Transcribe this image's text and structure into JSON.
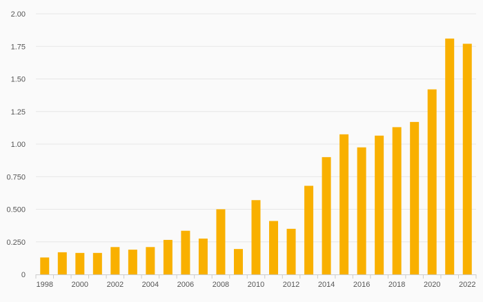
{
  "chart_data": {
    "type": "bar",
    "title": "",
    "xlabel": "",
    "ylabel": "",
    "categories": [
      "1998",
      "1999",
      "2000",
      "2001",
      "2002",
      "2003",
      "2004",
      "2005",
      "2006",
      "2007",
      "2008",
      "2009",
      "2010",
      "2011",
      "2012",
      "2013",
      "2014",
      "2015",
      "2016",
      "2017",
      "2018",
      "2019",
      "2020",
      "2021",
      "2022"
    ],
    "values": [
      0.13,
      0.17,
      0.165,
      0.165,
      0.21,
      0.19,
      0.21,
      0.265,
      0.335,
      0.275,
      0.5,
      0.195,
      0.57,
      0.41,
      0.35,
      0.68,
      0.9,
      1.075,
      0.975,
      1.065,
      1.13,
      1.17,
      1.42,
      1.81,
      1.77
    ],
    "ylim": [
      0,
      2
    ],
    "yticks": [
      "0",
      "0.250",
      "0.500",
      "0.750",
      "1.00",
      "1.25",
      "1.50",
      "1.75",
      "2.00"
    ],
    "yticks_values": [
      0,
      0.25,
      0.5,
      0.75,
      1.0,
      1.25,
      1.5,
      1.75,
      2.0
    ],
    "xtick_labels": [
      "1998",
      "2000",
      "2002",
      "2004",
      "2006",
      "2008",
      "2010",
      "2012",
      "2014",
      "2016",
      "2018",
      "2020",
      "2022"
    ],
    "grid": true,
    "legend": "none",
    "colors": {
      "bar": "#f9b000",
      "grid": "#e6e6e6",
      "axis": "#cccccc",
      "text": "#555555",
      "background": "#fafafa"
    }
  }
}
